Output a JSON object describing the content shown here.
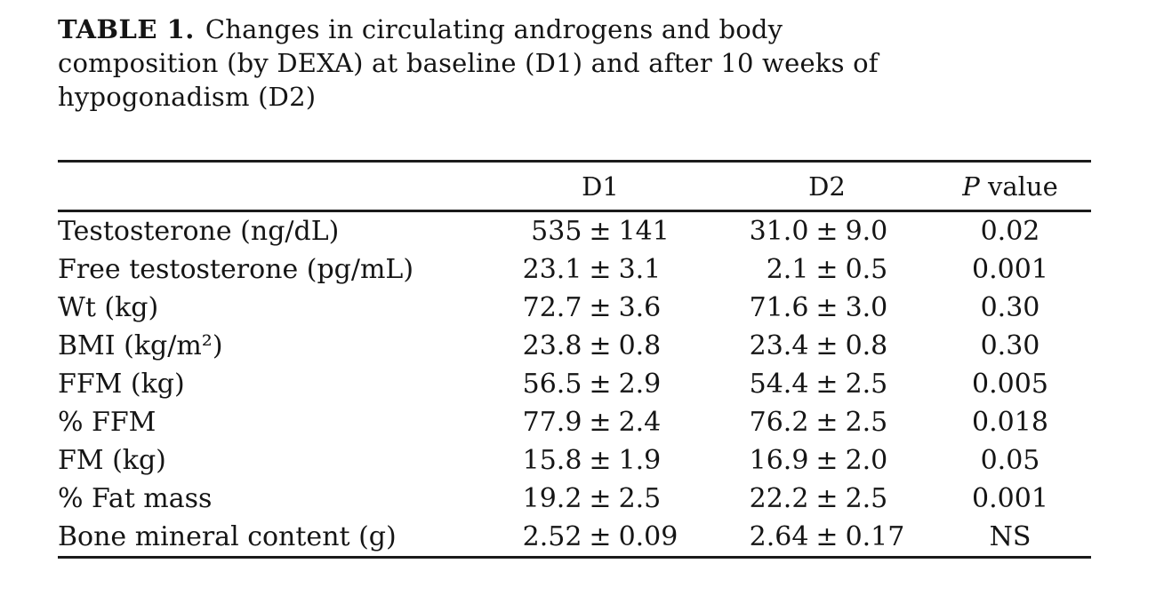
{
  "page": {
    "background": "#ffffff",
    "text_color": "#151515",
    "rule_color": "#1b1b1b"
  },
  "table1": {
    "title": {
      "label": "TABLE 1.",
      "line1": "Changes in circulating androgens and body",
      "line2": "composition (by DEXA) at baseline (D1) and after 10 weeks of",
      "line3": "hypogonadism (D2)"
    },
    "header": {
      "row_label": "",
      "d1": "D1",
      "d2": "D2",
      "p_symbol": "P",
      "p_word": "value"
    },
    "rows": [
      {
        "label": "Testosterone (ng/dL)",
        "d1": "535 ± 141",
        "d2": "31.0 ± 9.0",
        "p": "0.02"
      },
      {
        "label": "Free testosterone (pg/mL)",
        "d1": "23.1 ± 3.1",
        "d2": "2.1 ± 0.5",
        "p": "0.001"
      },
      {
        "label": "Wt (kg)",
        "d1": "72.7 ± 3.6",
        "d2": "71.6 ± 3.0",
        "p": "0.30"
      },
      {
        "label": "BMI (kg/m²)",
        "d1": "23.8 ± 0.8",
        "d2": "23.4 ± 0.8",
        "p": "0.30"
      },
      {
        "label": "FFM (kg)",
        "d1": "56.5 ± 2.9",
        "d2": "54.4 ± 2.5",
        "p": "0.005"
      },
      {
        "label": "% FFM",
        "d1": "77.9 ± 2.4",
        "d2": "76.2 ± 2.5",
        "p": "0.018"
      },
      {
        "label": "FM (kg)",
        "d1": "15.8 ± 1.9",
        "d2": "16.9 ± 2.0",
        "p": "0.05"
      },
      {
        "label": "% Fat mass",
        "d1": "19.2 ± 2.5",
        "d2": "22.2 ± 2.5",
        "p": "0.001"
      },
      {
        "label": "Bone mineral content (g)",
        "d1": "2.52 ± 0.09",
        "d2": "2.64 ± 0.17",
        "p": "NS"
      }
    ]
  }
}
